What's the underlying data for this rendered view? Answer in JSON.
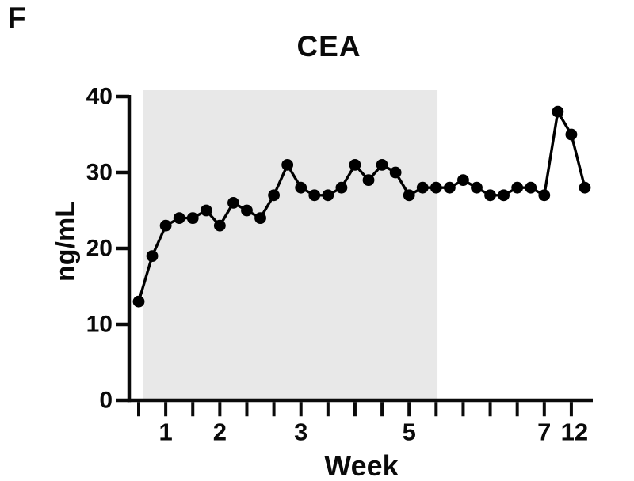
{
  "figure": {
    "panel_label": "F",
    "title": "CEA",
    "xlabel": "Week",
    "ylabel": "ng/mL"
  },
  "chart_data": {
    "type": "line",
    "title": "CEA",
    "xlabel": "Week",
    "ylabel": "ng/mL",
    "ylim": [
      0,
      40
    ],
    "yticks": [
      0,
      10,
      20,
      30,
      40
    ],
    "grid": false,
    "legend": false,
    "x_axis_kind": "sample-index",
    "x": [
      0,
      1,
      2,
      3,
      4,
      5,
      6,
      7,
      8,
      9,
      10,
      11,
      12,
      13,
      14,
      15,
      16,
      17,
      18,
      19,
      20,
      21,
      22,
      23,
      24,
      25,
      26,
      27,
      28,
      29,
      30,
      31,
      32,
      33
    ],
    "series": [
      {
        "name": "CEA",
        "marker": "filled-circle",
        "color": "#000000",
        "values": [
          13,
          19,
          23,
          24,
          24,
          25,
          23,
          26,
          25,
          24,
          27,
          31,
          28,
          27,
          27,
          28,
          31,
          29,
          31,
          30,
          27,
          28,
          28,
          28,
          29,
          28,
          27,
          27,
          28,
          28,
          27,
          38,
          35,
          28
        ]
      }
    ],
    "x_tick_indices": [
      0,
      2,
      4,
      6,
      8,
      10,
      12,
      14,
      16,
      18,
      20,
      22,
      24,
      26,
      28,
      30,
      32
    ],
    "x_week_labels": [
      {
        "index": 2,
        "label": "1"
      },
      {
        "index": 6,
        "label": "2"
      },
      {
        "index": 12,
        "label": "3"
      },
      {
        "index": 20,
        "label": "5"
      },
      {
        "index": 30,
        "label": "7"
      },
      {
        "index": 32,
        "label": "12"
      }
    ],
    "shaded_region": {
      "start_index": 0.35,
      "end_index": 22.1,
      "color": "#e8e8e8"
    },
    "axis_color": "#0a0a0a",
    "background_color": "#ffffff"
  }
}
